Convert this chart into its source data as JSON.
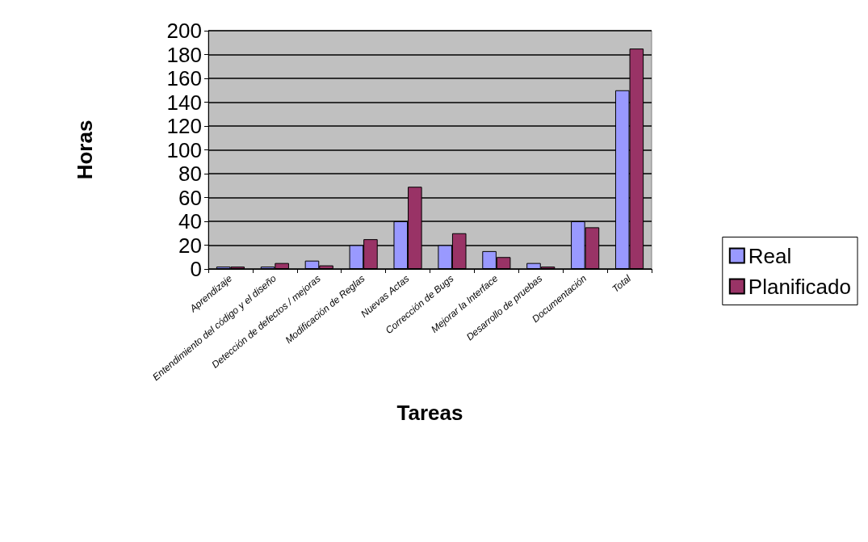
{
  "chart_data": {
    "type": "bar",
    "xlabel": "Tareas",
    "ylabel": "Horas",
    "categories": [
      "Aprendizaje",
      "Entendimiento del código y el diseño",
      "Detección de defectos / mejoras",
      "Modificación de Reglas",
      "Nuevas Actas",
      "Corrección de Bugs",
      "Mejorar la Interface",
      "Desarrollo de pruebas",
      "Documentación",
      "Total"
    ],
    "series": [
      {
        "name": "Real",
        "color": "#9999ff",
        "values": [
          2,
          2,
          7,
          20,
          40,
          20,
          15,
          5,
          40,
          150
        ]
      },
      {
        "name": "Planificado",
        "color": "#993366",
        "values": [
          2,
          5,
          3,
          25,
          69,
          30,
          10,
          2,
          35,
          185
        ]
      }
    ],
    "ylim": [
      0,
      200
    ],
    "yticks": [
      0,
      20,
      40,
      60,
      80,
      100,
      120,
      140,
      160,
      180,
      200
    ],
    "grid": "y",
    "legend": "right"
  }
}
